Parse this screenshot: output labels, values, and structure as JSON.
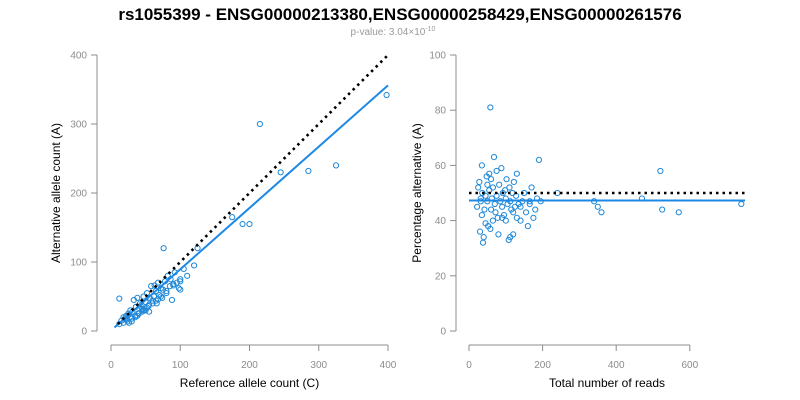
{
  "title": "rs1055399 - ENSG00000213380,ENSG00000258429,ENSG00000261576",
  "pvalue": {
    "prefix": "p-value: 3.04×10",
    "exponent": "-10"
  },
  "colors": {
    "points": "#1e88d8",
    "fit": "#1e88e5",
    "reference": "#000000",
    "axis": "#8c8c8c"
  },
  "chart_data": [
    {
      "type": "scatter",
      "xlabel": "Reference allele count (C)",
      "ylabel": "Alternative allele count (A)",
      "xlim": [
        0,
        400
      ],
      "ylim": [
        0,
        400
      ],
      "xticks": [
        0,
        100,
        200,
        300,
        400
      ],
      "yticks": [
        0,
        100,
        200,
        300,
        400
      ],
      "reference_line": {
        "style": "dotted",
        "from": [
          10,
          10
        ],
        "to": [
          400,
          400
        ]
      },
      "fit_line": {
        "from": [
          5,
          5
        ],
        "to": [
          400,
          356
        ]
      },
      "x": [
        12,
        15,
        18,
        20,
        22,
        25,
        26,
        28,
        30,
        31,
        33,
        35,
        36,
        38,
        40,
        42,
        44,
        45,
        47,
        48,
        50,
        52,
        54,
        55,
        56,
        58,
        60,
        62,
        63,
        65,
        66,
        68,
        70,
        72,
        74,
        75,
        76,
        78,
        80,
        82,
        85,
        86,
        88,
        90,
        92,
        95,
        98,
        100,
        100,
        105,
        110,
        120,
        125,
        175,
        190,
        200,
        215,
        245,
        285,
        325,
        398,
        12,
        18,
        24,
        30,
        38,
        45,
        52,
        60,
        68,
        30,
        35,
        40,
        22,
        28,
        46,
        55,
        65,
        72,
        80,
        90,
        100,
        50
      ],
      "y": [
        47,
        15,
        20,
        18,
        22,
        25,
        12,
        30,
        14,
        28,
        45,
        20,
        35,
        48,
        25,
        40,
        38,
        32,
        50,
        30,
        42,
        55,
        36,
        28,
        48,
        65,
        44,
        50,
        66,
        58,
        40,
        70,
        52,
        62,
        48,
        60,
        120,
        72,
        55,
        80,
        65,
        75,
        45,
        68,
        85,
        70,
        62,
        60,
        75,
        90,
        80,
        95,
        120,
        165,
        155,
        155,
        300,
        230,
        232,
        240,
        342,
        10,
        12,
        14,
        18,
        22,
        28,
        34,
        40,
        46,
        18,
        22,
        26,
        16,
        20,
        30,
        38,
        44,
        50,
        58,
        66,
        72,
        30
      ]
    },
    {
      "type": "scatter",
      "xlabel": "Total number of reads",
      "ylabel": "Percentage alternative (A)",
      "xlim": [
        0,
        750
      ],
      "ylim": [
        0,
        100
      ],
      "xticks": [
        0,
        200,
        400,
        600
      ],
      "yticks": [
        0,
        20,
        40,
        60,
        80,
        100
      ],
      "reference_line": {
        "style": "dotted",
        "y": 50
      },
      "fit_line": {
        "y": 47.3
      },
      "x": [
        22,
        25,
        28,
        30,
        32,
        35,
        35,
        38,
        40,
        42,
        45,
        45,
        48,
        50,
        52,
        55,
        55,
        58,
        60,
        60,
        62,
        65,
        65,
        68,
        70,
        72,
        75,
        75,
        78,
        80,
        82,
        85,
        88,
        90,
        92,
        95,
        98,
        100,
        100,
        102,
        105,
        108,
        110,
        112,
        115,
        118,
        120,
        120,
        122,
        125,
        128,
        130,
        130,
        135,
        140,
        145,
        150,
        155,
        160,
        165,
        170,
        175,
        180,
        185,
        190,
        195,
        240,
        340,
        350,
        360,
        470,
        520,
        525,
        570,
        740,
        32,
        36,
        50,
        58,
        90,
        112,
        140,
        165
      ],
      "y": [
        45,
        52,
        54,
        36,
        47,
        42,
        60,
        32,
        34,
        44,
        49,
        39,
        56,
        47,
        38,
        51,
        57,
        81,
        44,
        55,
        48,
        52,
        40,
        63,
        46,
        43,
        49,
        58,
        41,
        35,
        53,
        47,
        59,
        45,
        50,
        42,
        51,
        48,
        40,
        55,
        46,
        33,
        52,
        47,
        44,
        50,
        43,
        35,
        54,
        45,
        49,
        41,
        57,
        46,
        40,
        47,
        50,
        43,
        38,
        46,
        52,
        41,
        44,
        48,
        62,
        47,
        50,
        47,
        45,
        43,
        48,
        58,
        44,
        43,
        46,
        48,
        50,
        53,
        37,
        41,
        34,
        45,
        47
      ]
    }
  ]
}
